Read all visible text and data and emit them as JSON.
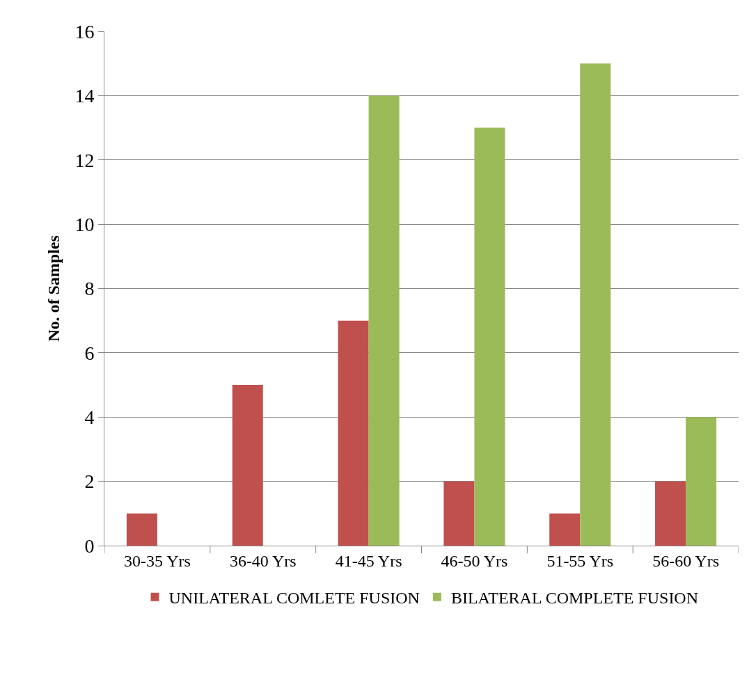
{
  "chart_data": {
    "type": "bar",
    "ylabel": "No. of Samples",
    "categories": [
      "30-35 Yrs",
      "36-40 Yrs",
      "41-45 Yrs",
      "46-50 Yrs",
      "51-55 Yrs",
      "56-60 Yrs"
    ],
    "series": [
      {
        "name": "UNILATERAL COMLETE FUSION",
        "color": "#c0504d",
        "values": [
          1,
          5,
          7,
          2,
          1,
          2
        ]
      },
      {
        "name": "BILATERAL COMPLETE FUSION",
        "color": "#9bbb59",
        "values": [
          0,
          0,
          14,
          13,
          15,
          4
        ]
      }
    ],
    "ylim": [
      0,
      16
    ],
    "yticks": [
      0,
      2,
      4,
      6,
      8,
      10,
      12,
      14,
      16
    ],
    "grid": "y",
    "legend": "bottom"
  }
}
